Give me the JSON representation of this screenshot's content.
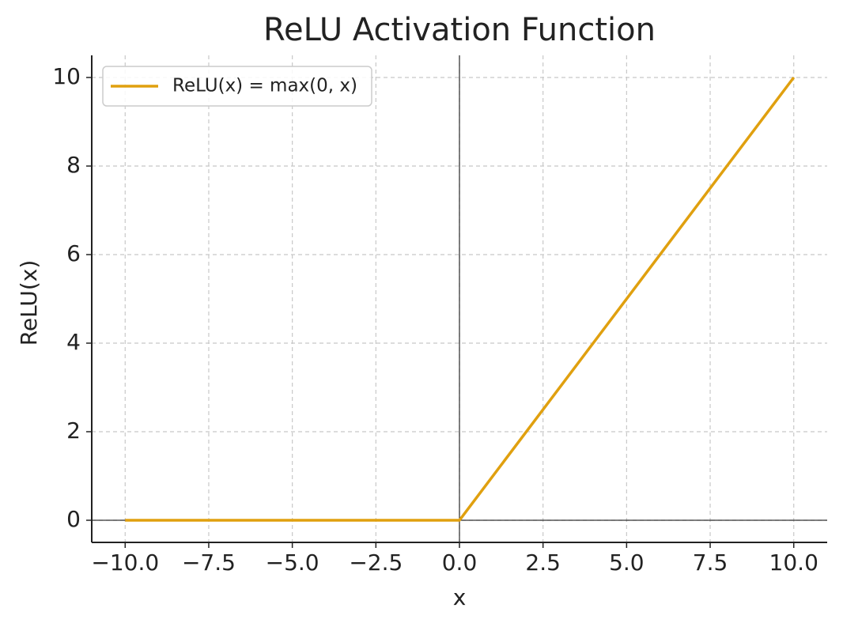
{
  "chart_data": {
    "type": "line",
    "title": "ReLU Activation Function",
    "x_label": "x",
    "y_label": "ReLU(x)",
    "x": [
      -10,
      0,
      10
    ],
    "series": [
      {
        "name": "ReLU(x) = max(0, x)",
        "color": "#e0a00f",
        "values": [
          0,
          0,
          10
        ]
      }
    ],
    "xlim": [
      -11,
      11
    ],
    "xticks": [
      {
        "value": -10,
        "label": "−10.0"
      },
      {
        "value": -7.5,
        "label": "−7.5"
      },
      {
        "value": -5,
        "label": "−5.0"
      },
      {
        "value": -2.5,
        "label": "−2.5"
      },
      {
        "value": 0,
        "label": "0.0"
      },
      2.5,
      {
        "value": 5,
        "label": "5.0"
      },
      7.5,
      {
        "value": 10,
        "label": "10.0"
      }
    ],
    "ylim": [
      -0.5,
      10.5
    ],
    "yticks": [
      0,
      2,
      4,
      6,
      8,
      10
    ],
    "grid": true,
    "legend": "upper-left"
  }
}
